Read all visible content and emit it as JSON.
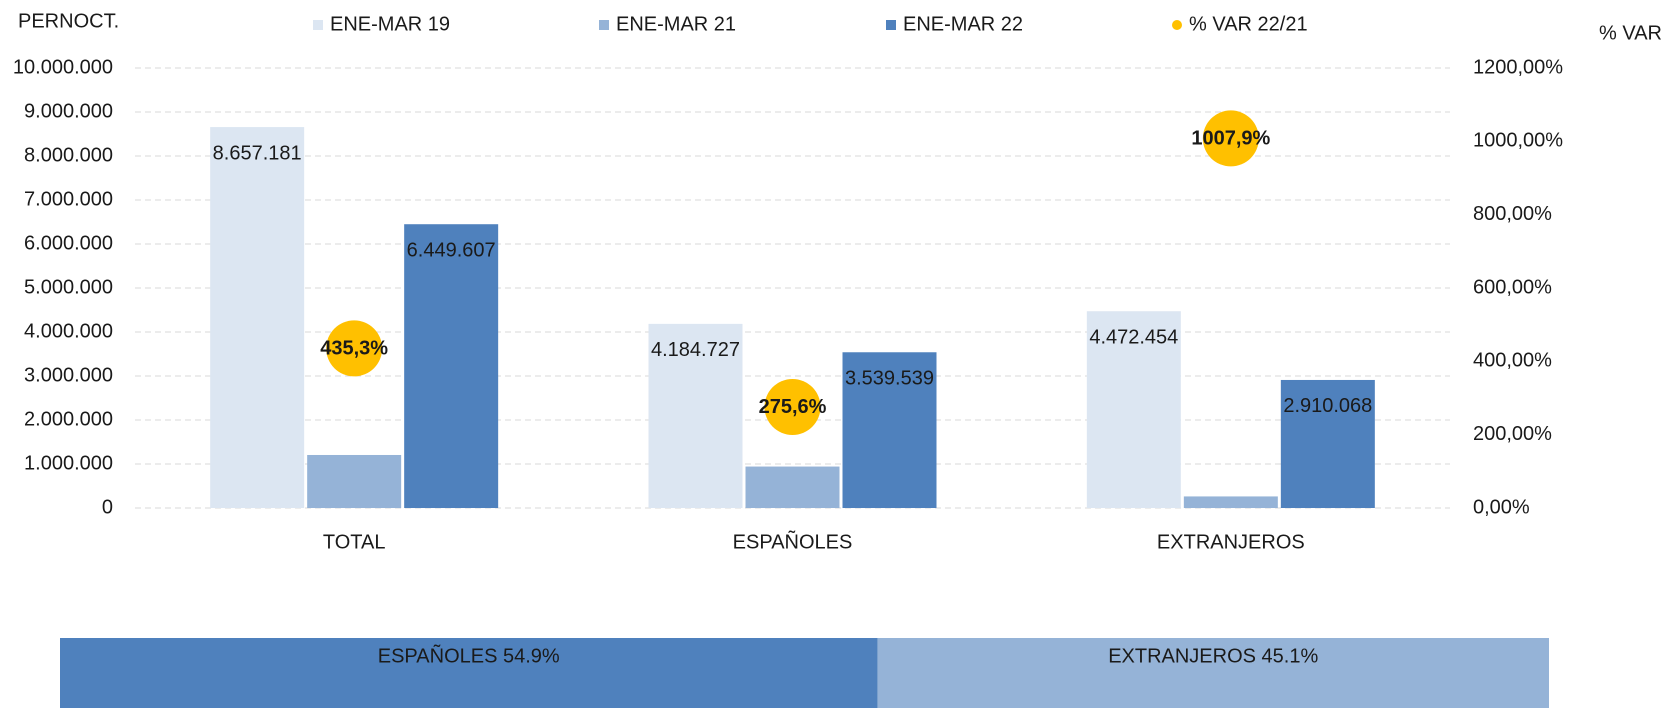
{
  "chart_data": {
    "type": "bar",
    "y_label": "PERNOCT.",
    "y2_label": "% VAR",
    "categories": [
      "TOTAL",
      "ESPAÑOLES",
      "EXTRANJEROS"
    ],
    "series": [
      {
        "name": "ENE-MAR 19",
        "color": "#dce6f2",
        "values": [
          8657181,
          4184727,
          4472454
        ],
        "value_labels": [
          "8.657.181",
          "4.184.727",
          "4.472.454"
        ]
      },
      {
        "name": "ENE-MAR 21",
        "color": "#95b3d7",
        "values": [
          1205000,
          942000,
          263000
        ]
      },
      {
        "name": "ENE-MAR 22",
        "color": "#4f81bd",
        "values": [
          6449607,
          3539539,
          2910068
        ],
        "value_labels": [
          "6.449.607",
          "3.539.539",
          "2.910.068"
        ]
      },
      {
        "name": "% VAR 22/21",
        "color": "#ffc000",
        "axis": "y2",
        "values": [
          435.3,
          275.6,
          1007.9
        ],
        "value_labels": [
          "435,3%",
          "275,6%",
          "1007,9%"
        ]
      }
    ],
    "ylim": [
      0,
      10000000
    ],
    "yticks": [
      0,
      {
        "value": 1000000,
        "label": "1.000.000"
      },
      {
        "value": 2000000,
        "label": "2.000.000"
      },
      {
        "value": 3000000,
        "label": "3.000.000"
      },
      {
        "value": 4000000,
        "label": "4.000.000"
      },
      {
        "value": 5000000,
        "label": "5.000.000"
      },
      {
        "value": 6000000,
        "label": "6.000.000"
      },
      {
        "value": 7000000,
        "label": "7.000.000"
      },
      {
        "value": 8000000,
        "label": "8.000.000"
      },
      {
        "value": 9000000,
        "label": "9.000.000"
      },
      {
        "value": 10000000,
        "label": "10.000.000"
      }
    ],
    "y2lim": [
      0,
      1200
    ],
    "y2ticks": [
      {
        "value": 0,
        "label": "0,00%"
      },
      {
        "value": 200,
        "label": "200,00%"
      },
      {
        "value": 400,
        "label": "400,00%"
      },
      {
        "value": 600,
        "label": "600,00%"
      },
      {
        "value": 800,
        "label": "800,00%"
      },
      {
        "value": 1000,
        "label": "1000,00%"
      },
      {
        "value": 1200,
        "label": "1200,00%"
      }
    ],
    "grid": true,
    "legend": "top",
    "share_bar": [
      {
        "label": "ESPAÑOLES 54.9%",
        "value": 54.9,
        "color": "#4f81bd"
      },
      {
        "label": "EXTRANJEROS 45.1%",
        "value": 45.1,
        "color": "#95b3d7"
      }
    ]
  }
}
